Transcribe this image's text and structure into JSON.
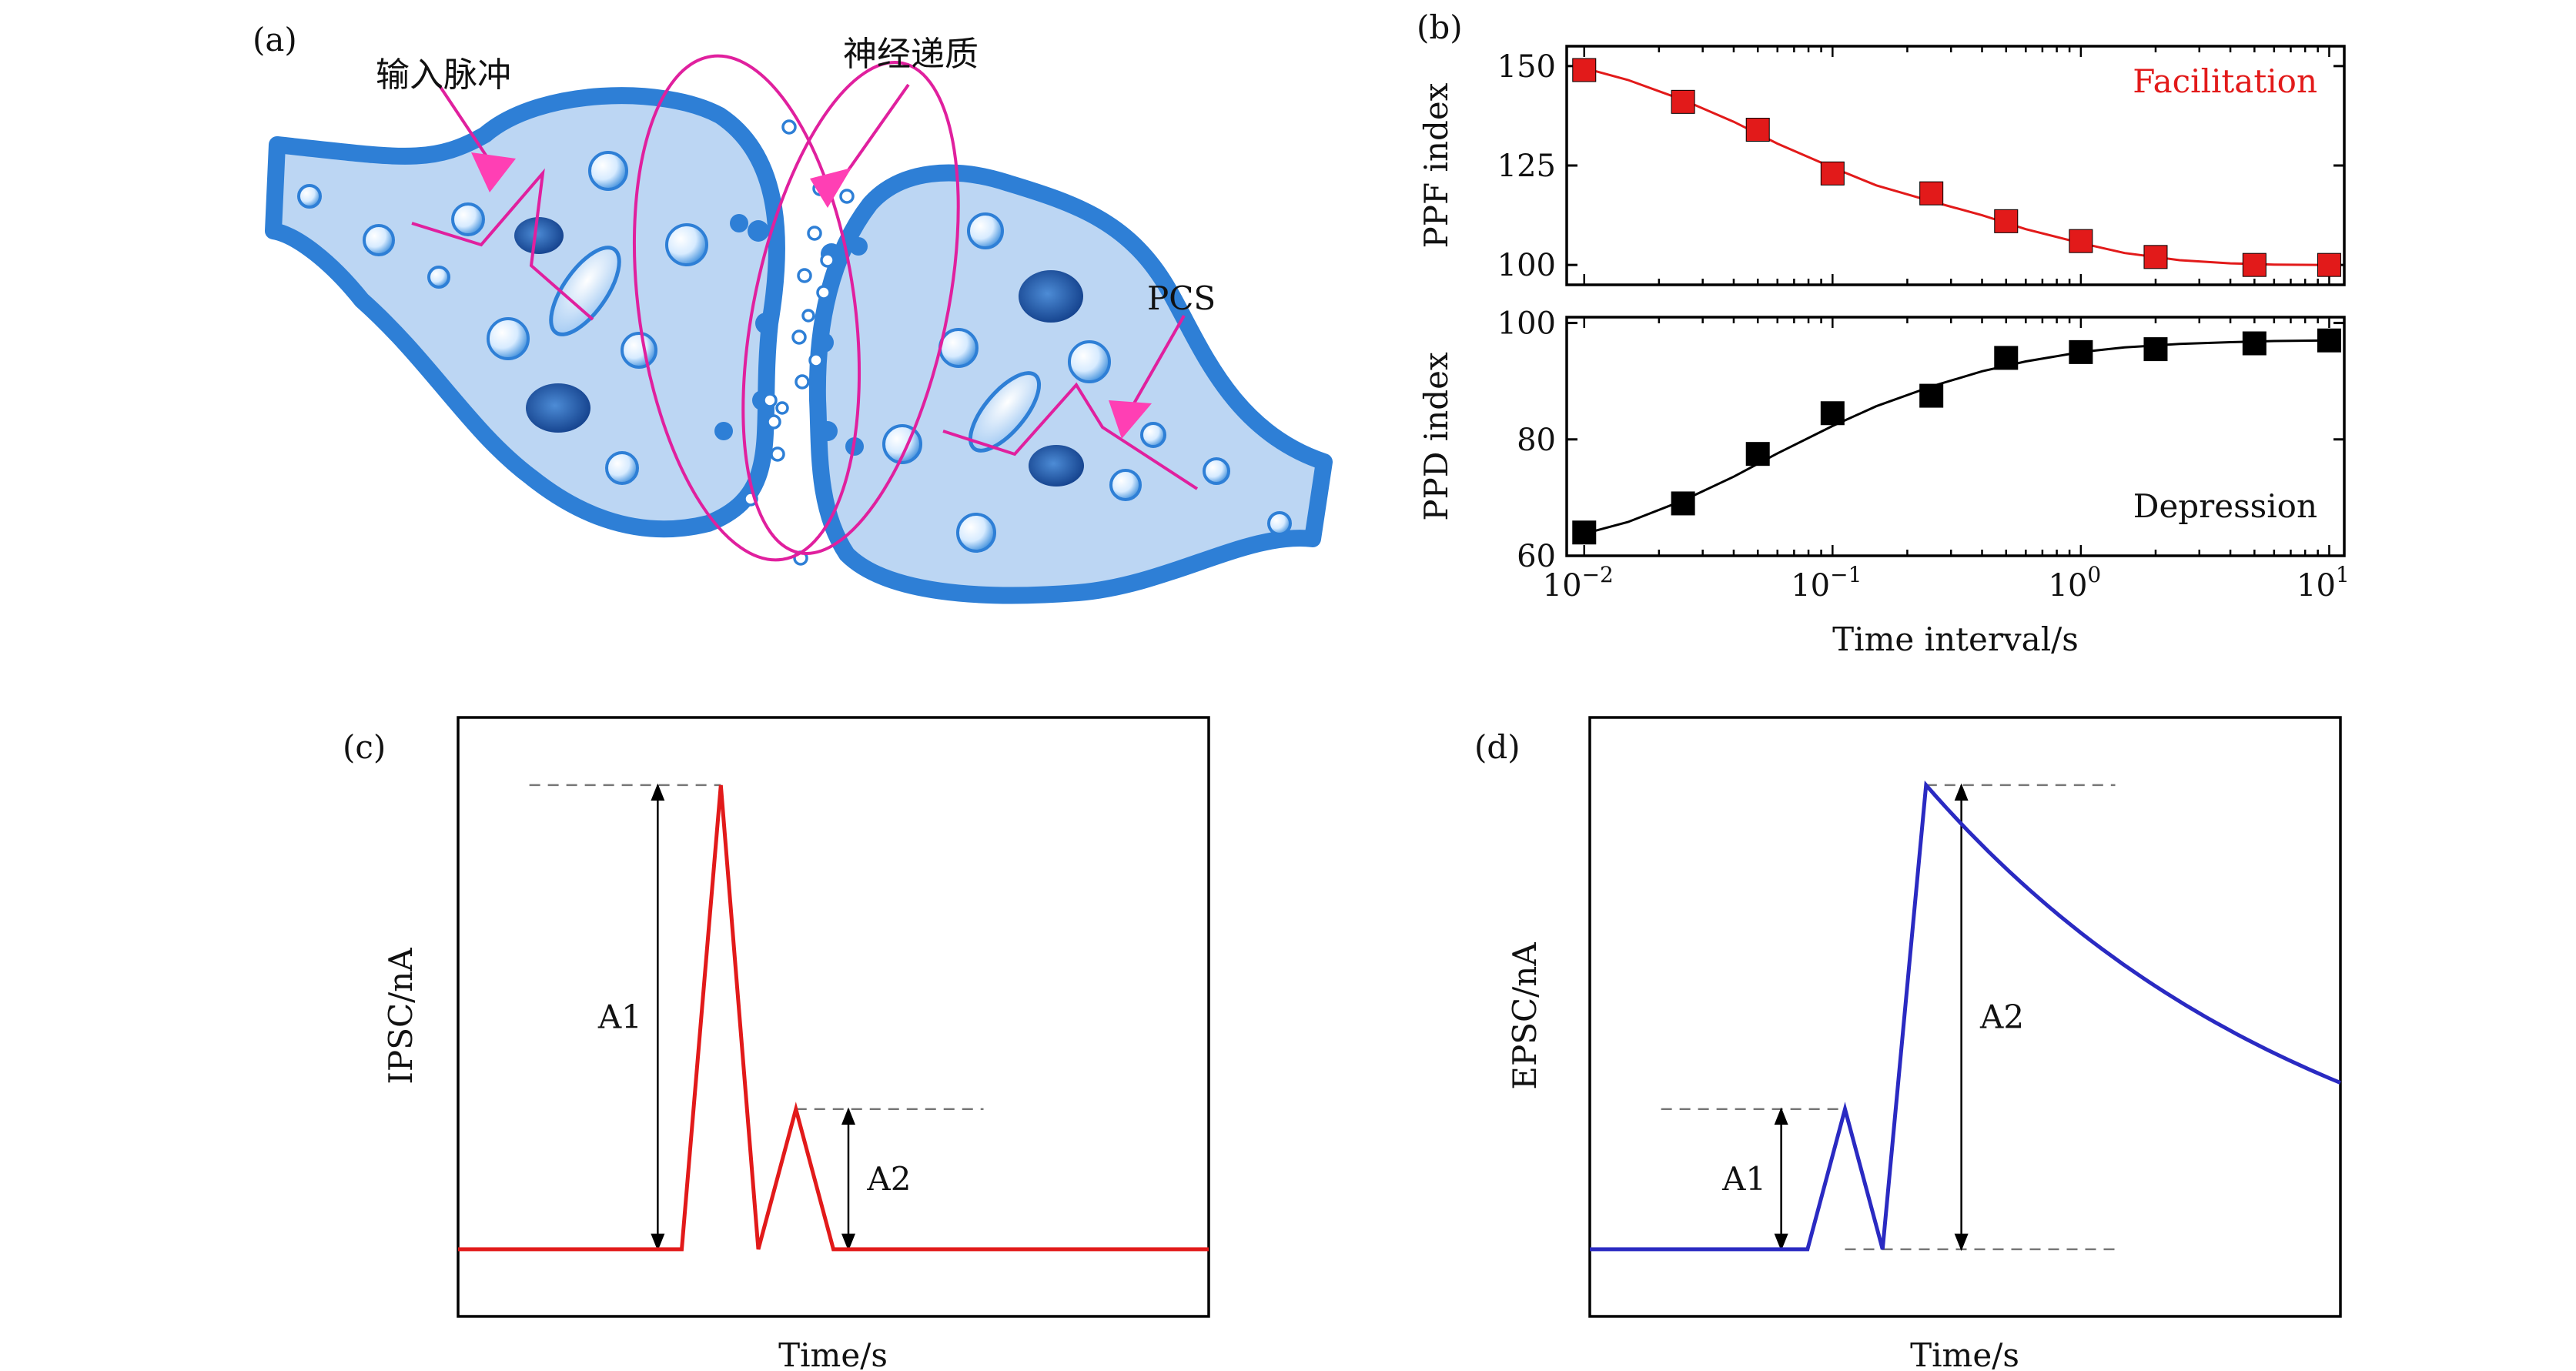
{
  "panels": {
    "a": {
      "label": "(a)",
      "annotations": [
        "输入脉冲",
        "神经递质",
        "PCS"
      ],
      "colors": {
        "cell_fill": "#bcd6f3",
        "cell_edge": "#2e7fd6",
        "annotation": "#e0209e",
        "arrow": "#ff3fb4"
      }
    },
    "b": {
      "label": "(b)"
    },
    "c": {
      "label": "(c)"
    },
    "d": {
      "label": "(d)"
    }
  },
  "chart_data": [
    {
      "panel": "b-top",
      "type": "line",
      "x_scale": "log",
      "xlim": [
        0.0085,
        11.5
      ],
      "ylim": [
        95,
        155
      ],
      "ylabel": "PPF index",
      "yticks": [
        100,
        125,
        150
      ],
      "annotation": "Facilitation",
      "color": "#e21a1a",
      "marker": "square",
      "x": [
        0.01,
        0.025,
        0.05,
        0.1,
        0.25,
        0.5,
        1,
        2,
        5,
        10
      ],
      "y": [
        149,
        141,
        134,
        123,
        118,
        111,
        106,
        102,
        100,
        100
      ],
      "fit": {
        "x": [
          0.01,
          0.015,
          0.025,
          0.04,
          0.06,
          0.1,
          0.15,
          0.25,
          0.4,
          0.6,
          1,
          1.5,
          2.5,
          4,
          6,
          10
        ],
        "y": [
          149.5,
          146.5,
          141.5,
          136,
          130.5,
          124.5,
          120,
          116,
          112.5,
          109,
          105.5,
          103,
          101.2,
          100.4,
          100.1,
          100
        ]
      }
    },
    {
      "panel": "b-bottom",
      "type": "line",
      "x_scale": "log",
      "xlim": [
        0.0085,
        11.5
      ],
      "ylim": [
        60,
        101
      ],
      "xlabel": "Time interval/s",
      "ylabel": "PPD index",
      "yticks": [
        60,
        80,
        100
      ],
      "xticks": [
        {
          "base": "10",
          "exp": "−2",
          "value": 0.01
        },
        {
          "base": "10",
          "exp": "−1",
          "value": 0.1
        },
        {
          "base": "10",
          "exp": "0",
          "value": 1
        },
        {
          "base": "10",
          "exp": "1",
          "value": 10
        }
      ],
      "annotation": "Depression",
      "color": "#000000",
      "marker": "square",
      "x": [
        0.01,
        0.025,
        0.05,
        0.1,
        0.25,
        0.5,
        1,
        2,
        5,
        10
      ],
      "y": [
        64,
        69,
        77.5,
        84.5,
        87.5,
        94,
        95,
        95.5,
        96.5,
        97
      ],
      "fit": {
        "x": [
          0.01,
          0.015,
          0.025,
          0.04,
          0.06,
          0.1,
          0.15,
          0.25,
          0.4,
          0.6,
          1,
          1.5,
          2.5,
          4,
          6,
          10
        ],
        "y": [
          63.8,
          65.8,
          69.5,
          73.6,
          77.6,
          82.3,
          85.7,
          89.1,
          91.7,
          93.4,
          95,
          95.8,
          96.4,
          96.7,
          96.9,
          97
        ]
      }
    },
    {
      "panel": "c",
      "type": "line",
      "xlabel": "Time/s",
      "ylabel": "IPSC/nA",
      "color": "#e21a1a",
      "xlim": [
        0,
        100
      ],
      "ylim": [
        0,
        100
      ],
      "x": [
        0,
        29.8,
        35,
        40,
        45,
        50,
        100
      ],
      "y": [
        11.2,
        11.2,
        88.7,
        11.2,
        34.6,
        11.2,
        11.2
      ],
      "annotations": [
        {
          "label": "A1",
          "from": 11.2,
          "to": 88.7
        },
        {
          "label": "A2",
          "from": 11.2,
          "to": 34.6
        }
      ]
    },
    {
      "panel": "d",
      "type": "line",
      "xlabel": "Time/s",
      "ylabel": "EPSC/nA",
      "color": "#2a2ac2",
      "xlim": [
        0,
        100
      ],
      "ylim": [
        0,
        100
      ],
      "x": [
        0,
        29,
        34,
        39,
        44.8,
        100
      ],
      "y": [
        11.2,
        11.2,
        34.6,
        11.2,
        88.7,
        39
      ],
      "decay": "exponential",
      "annotations": [
        {
          "label": "A1",
          "from": 11.2,
          "to": 34.6
        },
        {
          "label": "A2",
          "from": 11.2,
          "to": 88.7
        }
      ]
    }
  ]
}
